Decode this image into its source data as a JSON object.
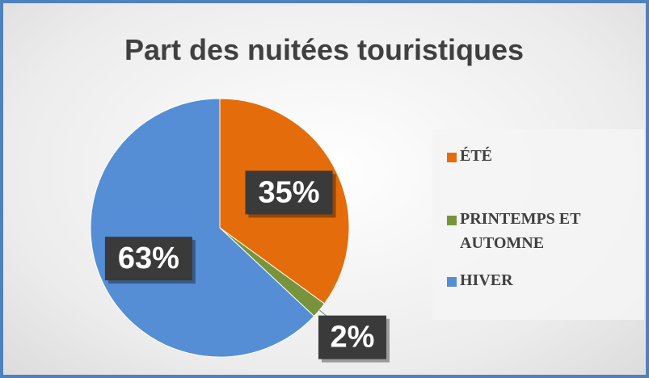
{
  "chart_data": {
    "type": "pie",
    "title": "Part des nuitées touristiques",
    "categories": [
      "ÉTÉ",
      "PRINTEMPS ET AUTOMNE",
      "HIVER"
    ],
    "values": [
      35,
      2,
      63
    ],
    "value_labels": [
      "35%",
      "2%",
      "63%"
    ],
    "colors": [
      "#e46c0a",
      "#77933c",
      "#558ed5"
    ]
  }
}
